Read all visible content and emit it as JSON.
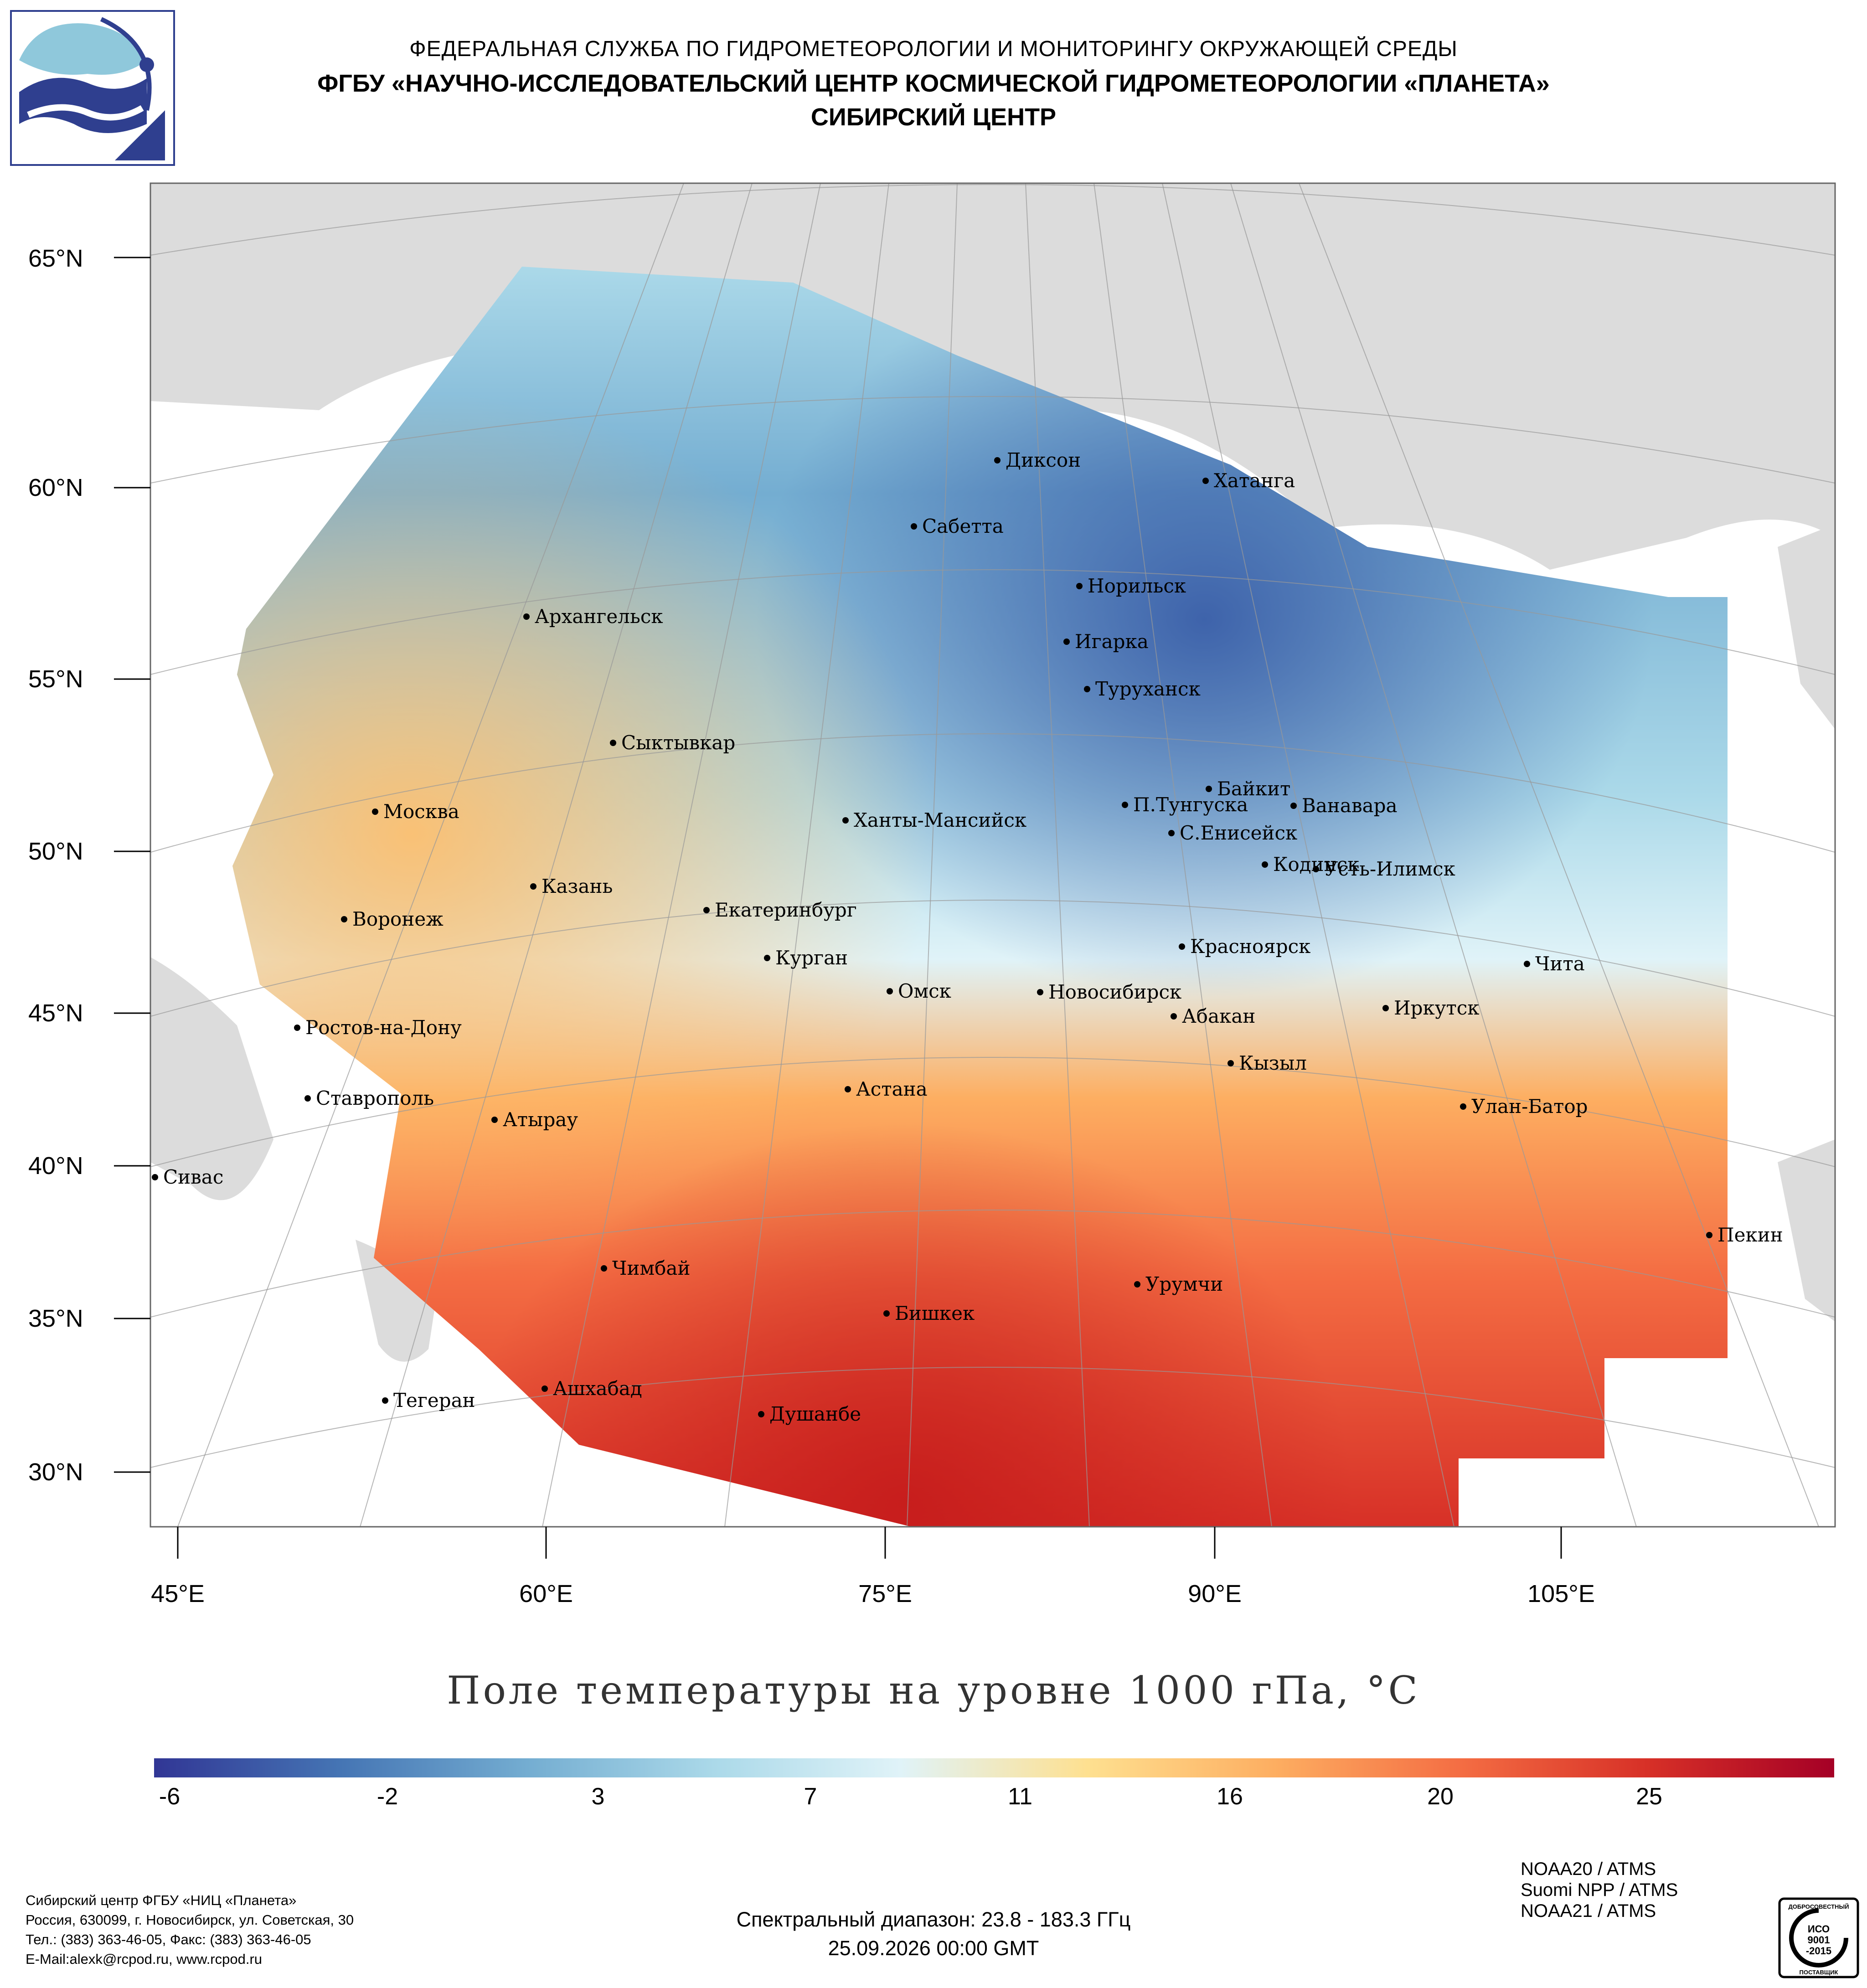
{
  "header": {
    "line1": "ФЕДЕРАЛЬНАЯ СЛУЖБА ПО ГИДРОМЕТЕОРОЛОГИИ И МОНИТОРИНГУ ОКРУЖАЮЩЕЙ СРЕДЫ",
    "line2": "ФГБУ «НАУЧНО-ИССЛЕДОВАТЕЛЬСКИЙ ЦЕНТР КОСМИЧЕСКОЙ ГИДРОМЕТЕОРОЛОГИИ «ПЛАНЕТА»",
    "line3": "СИБИРСКИЙ ЦЕНТР"
  },
  "logo_icon": "planeta-logo-icon",
  "map": {
    "latitude_labels": [
      "65°N",
      "60°N",
      "55°N",
      "50°N",
      "45°N",
      "40°N",
      "35°N",
      "30°N"
    ],
    "longitude_labels": [
      "45°E",
      "60°E",
      "75°E",
      "90°E",
      "105°E"
    ],
    "cities": [
      {
        "name": "Диксон"
      },
      {
        "name": "Хатанга"
      },
      {
        "name": "Сабетта"
      },
      {
        "name": "Норильск"
      },
      {
        "name": "Архангельск"
      },
      {
        "name": "Игарка"
      },
      {
        "name": "Туруханск"
      },
      {
        "name": "Сыктывкар"
      },
      {
        "name": "Байкит"
      },
      {
        "name": "П.Тунгуска"
      },
      {
        "name": "Ванавара"
      },
      {
        "name": "Москва"
      },
      {
        "name": "Ханты-Мансийск"
      },
      {
        "name": "С.Енисейск"
      },
      {
        "name": "Кодинск"
      },
      {
        "name": "Усть-Илимск"
      },
      {
        "name": "Казань"
      },
      {
        "name": "Воронеж"
      },
      {
        "name": "Екатеринбург"
      },
      {
        "name": "Красноярск"
      },
      {
        "name": "Курган"
      },
      {
        "name": "Чита"
      },
      {
        "name": "Омск"
      },
      {
        "name": "Новосибирск"
      },
      {
        "name": "Иркутск"
      },
      {
        "name": "Ростов-на-Дону"
      },
      {
        "name": "Абакан"
      },
      {
        "name": "Кызыл"
      },
      {
        "name": "Астана"
      },
      {
        "name": "Ставрополь"
      },
      {
        "name": "Улан-Батор"
      },
      {
        "name": "Атырау"
      },
      {
        "name": "Сивас"
      },
      {
        "name": "Пекин"
      },
      {
        "name": "Чимбай"
      },
      {
        "name": "Урумчи"
      },
      {
        "name": "Бишкек"
      },
      {
        "name": "Ашхабад"
      },
      {
        "name": "Тегеран"
      },
      {
        "name": "Душанбе"
      }
    ]
  },
  "map_title": "Поле температуры на уровне 1000 гПа, °С",
  "colorbar": {
    "ticks": [
      "-6",
      "-2",
      "3",
      "7",
      "11",
      "16",
      "20",
      "25"
    ],
    "colors": [
      "#313695",
      "#4575b4",
      "#74add1",
      "#abd9e9",
      "#e0f3f8",
      "#fee090",
      "#fdae61",
      "#f46d43",
      "#d73027",
      "#a50026"
    ]
  },
  "footer": {
    "org_lines": [
      "Сибирский центр ФГБУ «НИЦ «Планета»",
      "Россия, 630099, г. Новосибирск, ул. Советская, 30",
      "Тел.: (383) 363-46-05, Факс: (383) 363-46-05",
      "E-Mail:alexk@rcpod.ru, www.rcpod.ru"
    ],
    "spectral": "Спектральный диапазон: 23.8 - 183.3 ГГц",
    "datetime": "25.09.2026 00:00 GMT",
    "sensors": [
      "NOAA20 / ATMS",
      "Suomi NPP / ATMS",
      "NOAA21 / ATMS"
    ],
    "cert_top": "ДОБРОСОВЕСТНЫЙ",
    "cert_mid1": "ИСО",
    "cert_mid2": "9001",
    "cert_mid3": "-2015",
    "cert_bottom": "ПОСТАВЩИК"
  }
}
